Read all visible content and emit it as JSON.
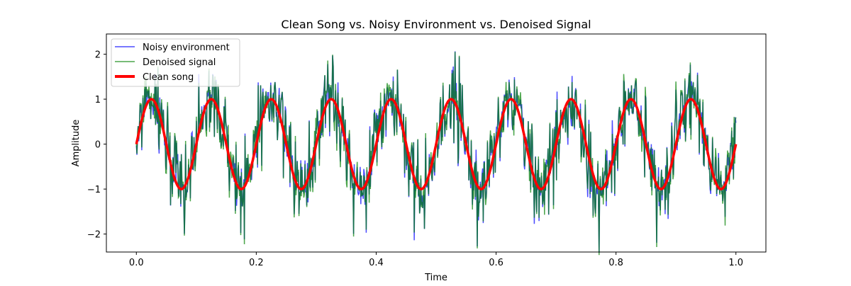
{
  "chart_data": {
    "type": "line",
    "title": "Clean Song vs. Noisy Environment vs. Denoised Signal",
    "xlabel": "Time",
    "ylabel": "Amplitude",
    "xlim": [
      -0.05,
      1.05
    ],
    "ylim": [
      -2.4,
      2.45
    ],
    "xticks": [
      0.0,
      0.2,
      0.4,
      0.6,
      0.8,
      1.0
    ],
    "xtick_labels": [
      "0.0",
      "0.2",
      "0.4",
      "0.6",
      "0.8",
      "1.0"
    ],
    "yticks": [
      -2,
      -1,
      0,
      1,
      2
    ],
    "ytick_labels": [
      "−2",
      "−1",
      "0",
      "1",
      "2"
    ],
    "grid": false,
    "legend_position": "top-left",
    "n_points": 1000,
    "series": [
      {
        "name": "Noisy environment",
        "color": "#0000ff",
        "alpha": 0.7,
        "formula": "sin(2*pi*10*t) + noise",
        "noise_std": 0.45
      },
      {
        "name": "Denoised signal",
        "color": "#008000",
        "alpha": 0.7,
        "formula": "approximately noisy signal",
        "noise_std": 0.1
      },
      {
        "name": "Clean song",
        "color": "#ff0000",
        "alpha": 1,
        "formula": "sin(2*pi*10*t)",
        "frequency": 10,
        "amplitude": 1
      }
    ]
  }
}
